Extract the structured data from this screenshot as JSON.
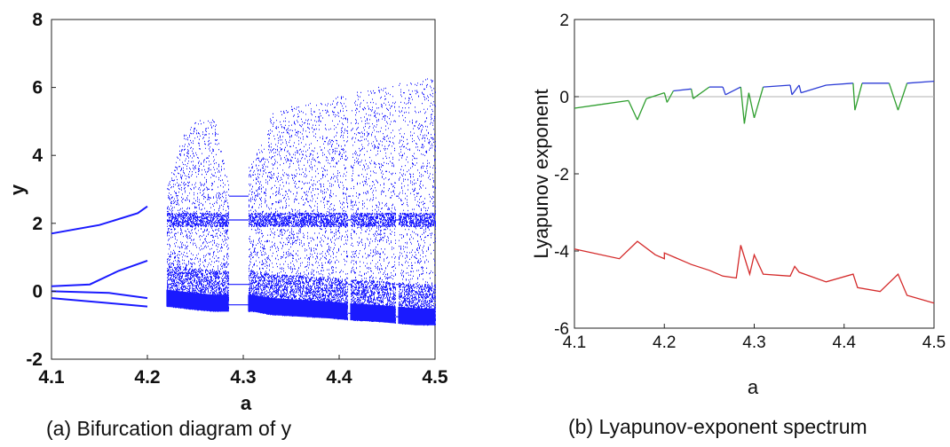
{
  "chart_data": [
    {
      "type": "scatter",
      "caption": "(a) Bifurcation diagram of y",
      "xlabel": "a",
      "ylabel": "y",
      "xlim": [
        4.1,
        4.5
      ],
      "ylim": [
        -2,
        8
      ],
      "xticks": [
        "4.1",
        "4.2",
        "4.3",
        "4.4",
        "4.5"
      ],
      "yticks": [
        "-2",
        "0",
        "2",
        "4",
        "6",
        "8"
      ],
      "point_color": "#1a1aff",
      "grid": false,
      "chaotic_band": [
        {
          "a": 4.22,
          "ymin": -0.45,
          "ymax": 3.0
        },
        {
          "a": 4.235,
          "ymin": -0.5,
          "ymax": 4.5
        },
        {
          "a": 4.25,
          "ymin": -0.55,
          "ymax": 5.0
        },
        {
          "a": 4.27,
          "ymin": -0.6,
          "ymax": 5.1
        },
        {
          "a": 4.285,
          "ymin": -0.6,
          "ymax": 3.1
        },
        {
          "a": 4.31,
          "ymin": -0.6,
          "ymax": 3.8
        },
        {
          "a": 4.33,
          "ymin": -0.7,
          "ymax": 5.3
        },
        {
          "a": 4.36,
          "ymin": -0.75,
          "ymax": 5.5
        },
        {
          "a": 4.39,
          "ymin": -0.8,
          "ymax": 5.6
        },
        {
          "a": 4.41,
          "ymin": -0.85,
          "ymax": 5.9
        },
        {
          "a": 4.44,
          "ymin": -0.9,
          "ymax": 6.0
        },
        {
          "a": 4.46,
          "ymin": -0.95,
          "ymax": 6.1
        },
        {
          "a": 4.48,
          "ymin": -1.0,
          "ymax": 6.2
        },
        {
          "a": 4.5,
          "ymin": -1.0,
          "ymax": 6.3
        }
      ],
      "periodic_windows": [
        {
          "from": 4.285,
          "to": 4.305
        },
        {
          "from": 4.409,
          "to": 4.412
        },
        {
          "from": 4.459,
          "to": 4.462
        }
      ],
      "periodic_branches": [
        {
          "name": "upper",
          "points": [
            [
              4.1,
              1.7
            ],
            [
              4.15,
              1.95
            ],
            [
              4.19,
              2.3
            ],
            [
              4.2,
              2.5
            ]
          ]
        },
        {
          "name": "mid",
          "points": [
            [
              4.1,
              0.15
            ],
            [
              4.14,
              0.2
            ],
            [
              4.17,
              0.6
            ],
            [
              4.2,
              0.9
            ]
          ]
        },
        {
          "name": "low-1",
          "points": [
            [
              4.1,
              0.0
            ],
            [
              4.16,
              -0.05
            ],
            [
              4.2,
              -0.2
            ]
          ]
        },
        {
          "name": "low-2",
          "points": [
            [
              4.1,
              -0.2
            ],
            [
              4.16,
              -0.35
            ],
            [
              4.2,
              -0.45
            ]
          ]
        }
      ]
    },
    {
      "type": "line",
      "caption": "(b) Lyapunov-exponent spectrum",
      "xlabel": "a",
      "ylabel": "Lyapunov exponent",
      "xlim": [
        4.1,
        4.5
      ],
      "ylim": [
        -6,
        2
      ],
      "xticks": [
        "4.1",
        "4.2",
        "4.3",
        "4.4",
        "4.5"
      ],
      "yticks": [
        "-6",
        "-4",
        "-2",
        "0",
        "2"
      ],
      "zero_line_color": "#b0b0b0",
      "series": [
        {
          "color_positive": "#2b3bd6",
          "color_negative": "#2e9e2e",
          "points": [
            [
              4.1,
              -0.3
            ],
            [
              4.13,
              -0.2
            ],
            [
              4.16,
              -0.1
            ],
            [
              4.17,
              -0.6
            ],
            [
              4.18,
              -0.05
            ],
            [
              4.2,
              0.1
            ],
            [
              4.203,
              -0.15
            ],
            [
              4.21,
              0.15
            ],
            [
              4.23,
              0.2
            ],
            [
              4.232,
              -0.05
            ],
            [
              4.25,
              0.25
            ],
            [
              4.265,
              0.25
            ],
            [
              4.268,
              0.05
            ],
            [
              4.285,
              0.25
            ],
            [
              4.289,
              -0.7
            ],
            [
              4.294,
              0.1
            ],
            [
              4.3,
              -0.55
            ],
            [
              4.31,
              0.25
            ],
            [
              4.34,
              0.3
            ],
            [
              4.342,
              0.05
            ],
            [
              4.35,
              0.3
            ],
            [
              4.352,
              0.1
            ],
            [
              4.38,
              0.3
            ],
            [
              4.41,
              0.35
            ],
            [
              4.412,
              -0.35
            ],
            [
              4.42,
              0.35
            ],
            [
              4.45,
              0.35
            ],
            [
              4.46,
              -0.35
            ],
            [
              4.47,
              0.35
            ],
            [
              4.5,
              0.4
            ]
          ]
        },
        {
          "color": "#d42a2a",
          "points": [
            [
              4.1,
              -3.95
            ],
            [
              4.15,
              -4.2
            ],
            [
              4.17,
              -3.75
            ],
            [
              4.19,
              -4.1
            ],
            [
              4.2,
              -4.2
            ],
            [
              4.2,
              -4.05
            ],
            [
              4.23,
              -4.35
            ],
            [
              4.25,
              -4.5
            ],
            [
              4.265,
              -4.65
            ],
            [
              4.28,
              -4.7
            ],
            [
              4.285,
              -3.85
            ],
            [
              4.295,
              -4.6
            ],
            [
              4.3,
              -4.1
            ],
            [
              4.31,
              -4.6
            ],
            [
              4.34,
              -4.65
            ],
            [
              4.345,
              -4.4
            ],
            [
              4.35,
              -4.55
            ],
            [
              4.38,
              -4.8
            ],
            [
              4.41,
              -4.6
            ],
            [
              4.415,
              -4.95
            ],
            [
              4.44,
              -5.05
            ],
            [
              4.46,
              -4.6
            ],
            [
              4.47,
              -5.15
            ],
            [
              4.5,
              -5.35
            ]
          ]
        }
      ]
    }
  ]
}
